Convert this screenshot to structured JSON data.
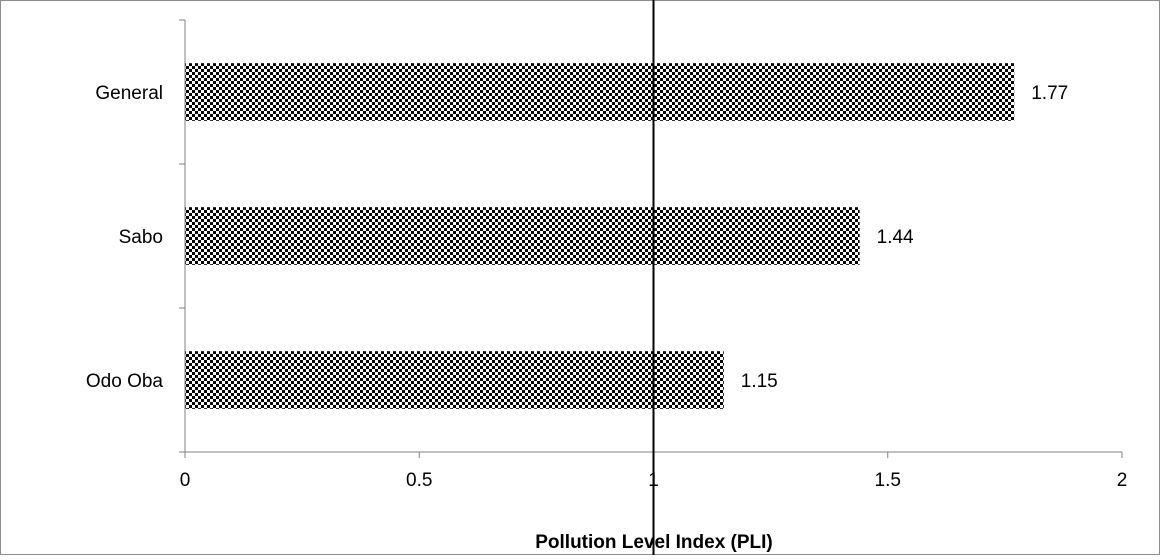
{
  "chart_data": {
    "type": "bar",
    "orientation": "horizontal",
    "title": "",
    "xlabel": "Pollution Level Index (PLI)",
    "ylabel": "",
    "categories": [
      "General",
      "Sabo",
      "Odo Oba"
    ],
    "values": [
      1.77,
      1.44,
      1.15
    ],
    "data_labels": [
      "1.77",
      "1.44",
      "1.15"
    ],
    "xlim": [
      0,
      2
    ],
    "x_ticks": [
      0,
      0.5,
      1,
      1.5,
      2
    ],
    "x_tick_labels": [
      "0",
      "0.5",
      "1",
      "1.5",
      "2"
    ],
    "reference_line": {
      "x": 1,
      "color": "#000000"
    },
    "grid": false,
    "legend": "none",
    "bar_fill": "black-and-white checker pattern",
    "colors": {
      "bar_dark": "#000000",
      "bar_light": "#ffffff",
      "axis": "#808080",
      "reference_line": "#000000"
    }
  }
}
